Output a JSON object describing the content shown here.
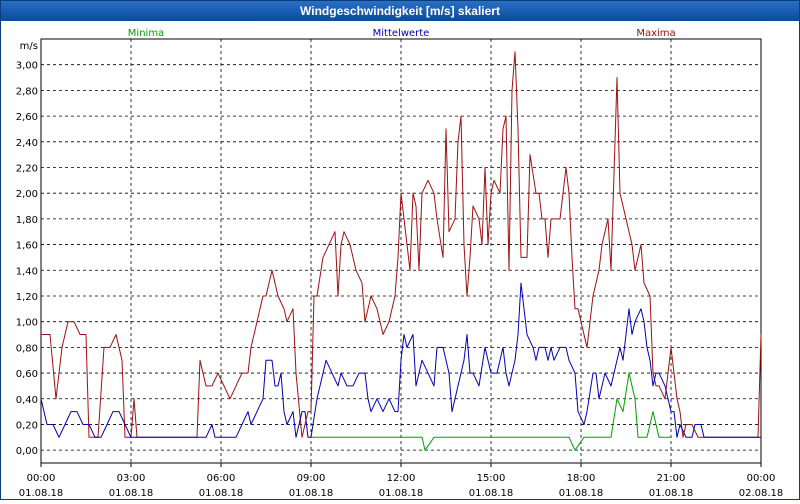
{
  "window": {
    "title": "Windgeschwindigkeit [m/s] skaliert"
  },
  "chart_data": {
    "type": "line",
    "title": "Windgeschwindigkeit [m/s] skaliert",
    "ylabel": "m/s",
    "ylim": [
      -0.1,
      3.2
    ],
    "xlim": [
      0,
      24
    ],
    "grid": true,
    "yticks": [
      "0,00",
      "0,20",
      "0,40",
      "0,60",
      "0,80",
      "1,00",
      "1,20",
      "1,40",
      "1,60",
      "1,80",
      "2,00",
      "2,20",
      "2,40",
      "2,60",
      "2,80",
      "3,00"
    ],
    "ytick_values": [
      0,
      0.2,
      0.4,
      0.6,
      0.8,
      1.0,
      1.2,
      1.4,
      1.6,
      1.8,
      2.0,
      2.2,
      2.4,
      2.6,
      2.8,
      3.0
    ],
    "xticks": [
      {
        "x": 0,
        "time": "00:00",
        "date": "01.08.18"
      },
      {
        "x": 3,
        "time": "03:00",
        "date": "01.08.18"
      },
      {
        "x": 6,
        "time": "06:00",
        "date": "01.08.18"
      },
      {
        "x": 9,
        "time": "09:00",
        "date": "01.08.18"
      },
      {
        "x": 12,
        "time": "12:00",
        "date": "01.08.18"
      },
      {
        "x": 15,
        "time": "15:00",
        "date": "01.08.18"
      },
      {
        "x": 18,
        "time": "18:00",
        "date": "01.08.18"
      },
      {
        "x": 21,
        "time": "21:00",
        "date": "01.08.18"
      },
      {
        "x": 24,
        "time": "00:00",
        "date": "02.08.18"
      }
    ],
    "series": [
      {
        "name": "Maxima",
        "color": "#a01010",
        "label_x": 20.5,
        "points": [
          [
            0,
            0.9
          ],
          [
            0.3,
            0.9
          ],
          [
            0.5,
            0.4
          ],
          [
            0.7,
            0.8
          ],
          [
            0.9,
            1.0
          ],
          [
            1.1,
            1.0
          ],
          [
            1.3,
            0.9
          ],
          [
            1.5,
            0.9
          ],
          [
            1.6,
            0.1
          ],
          [
            1.9,
            0.1
          ],
          [
            2.1,
            0.8
          ],
          [
            2.3,
            0.8
          ],
          [
            2.5,
            0.9
          ],
          [
            2.7,
            0.7
          ],
          [
            2.8,
            0.1
          ],
          [
            3.0,
            0.1
          ],
          [
            3.1,
            0.4
          ],
          [
            3.2,
            0.1
          ],
          [
            5.2,
            0.1
          ],
          [
            5.3,
            0.7
          ],
          [
            5.5,
            0.5
          ],
          [
            5.7,
            0.5
          ],
          [
            5.9,
            0.6
          ],
          [
            6.1,
            0.5
          ],
          [
            6.3,
            0.4
          ],
          [
            6.5,
            0.5
          ],
          [
            6.7,
            0.6
          ],
          [
            6.9,
            0.6
          ],
          [
            7.0,
            0.8
          ],
          [
            7.2,
            1.0
          ],
          [
            7.4,
            1.2
          ],
          [
            7.5,
            1.2
          ],
          [
            7.7,
            1.4
          ],
          [
            7.9,
            1.2
          ],
          [
            8.1,
            1.1
          ],
          [
            8.2,
            1.0
          ],
          [
            8.4,
            1.1
          ],
          [
            8.5,
            0.6
          ],
          [
            8.7,
            0.1
          ],
          [
            8.9,
            0.3
          ],
          [
            9.0,
            0.3
          ],
          [
            9.1,
            1.2
          ],
          [
            9.2,
            1.2
          ],
          [
            9.4,
            1.5
          ],
          [
            9.6,
            1.6
          ],
          [
            9.8,
            1.7
          ],
          [
            9.9,
            1.2
          ],
          [
            10.0,
            1.6
          ],
          [
            10.1,
            1.7
          ],
          [
            10.3,
            1.6
          ],
          [
            10.5,
            1.4
          ],
          [
            10.7,
            1.3
          ],
          [
            10.8,
            1.0
          ],
          [
            11.0,
            1.2
          ],
          [
            11.2,
            1.1
          ],
          [
            11.4,
            0.9
          ],
          [
            11.6,
            1.0
          ],
          [
            11.8,
            1.2
          ],
          [
            11.9,
            1.5
          ],
          [
            12.0,
            2.0
          ],
          [
            12.1,
            1.8
          ],
          [
            12.3,
            1.4
          ],
          [
            12.4,
            2.0
          ],
          [
            12.5,
            1.9
          ],
          [
            12.6,
            1.4
          ],
          [
            12.7,
            2.0
          ],
          [
            12.9,
            2.1
          ],
          [
            13.1,
            2.0
          ],
          [
            13.2,
            1.8
          ],
          [
            13.4,
            1.5
          ],
          [
            13.5,
            2.5
          ],
          [
            13.6,
            1.7
          ],
          [
            13.8,
            1.8
          ],
          [
            13.9,
            2.4
          ],
          [
            14.0,
            2.6
          ],
          [
            14.1,
            1.6
          ],
          [
            14.2,
            1.2
          ],
          [
            14.3,
            1.5
          ],
          [
            14.4,
            1.9
          ],
          [
            14.6,
            1.8
          ],
          [
            14.7,
            1.6
          ],
          [
            14.8,
            2.2
          ],
          [
            14.9,
            1.6
          ],
          [
            15.0,
            2.0
          ],
          [
            15.1,
            2.1
          ],
          [
            15.3,
            2.0
          ],
          [
            15.4,
            2.5
          ],
          [
            15.5,
            2.6
          ],
          [
            15.6,
            1.4
          ],
          [
            15.7,
            2.8
          ],
          [
            15.8,
            3.1
          ],
          [
            15.9,
            2.5
          ],
          [
            16.0,
            1.5
          ],
          [
            16.2,
            1.5
          ],
          [
            16.3,
            2.3
          ],
          [
            16.5,
            2.0
          ],
          [
            16.6,
            2.0
          ],
          [
            16.7,
            1.8
          ],
          [
            16.8,
            1.8
          ],
          [
            16.9,
            1.5
          ],
          [
            17.0,
            1.8
          ],
          [
            17.2,
            1.8
          ],
          [
            17.3,
            1.8
          ],
          [
            17.5,
            2.2
          ],
          [
            17.6,
            2.0
          ],
          [
            17.7,
            1.5
          ],
          [
            17.8,
            1.1
          ],
          [
            17.9,
            1.1
          ],
          [
            18.0,
            1.0
          ],
          [
            18.2,
            0.8
          ],
          [
            18.4,
            1.2
          ],
          [
            18.6,
            1.4
          ],
          [
            18.7,
            1.6
          ],
          [
            18.9,
            1.8
          ],
          [
            19.0,
            1.4
          ],
          [
            19.2,
            2.9
          ],
          [
            19.3,
            2.0
          ],
          [
            19.4,
            1.9
          ],
          [
            19.5,
            1.8
          ],
          [
            19.7,
            1.6
          ],
          [
            19.8,
            1.4
          ],
          [
            20.0,
            1.6
          ],
          [
            20.1,
            1.3
          ],
          [
            20.3,
            1.2
          ],
          [
            20.4,
            0.6
          ],
          [
            20.5,
            0.5
          ],
          [
            20.6,
            0.5
          ],
          [
            20.8,
            0.4
          ],
          [
            20.9,
            0.6
          ],
          [
            21.0,
            0.8
          ],
          [
            21.2,
            0.4
          ],
          [
            21.3,
            0.3
          ],
          [
            21.4,
            0.1
          ],
          [
            21.5,
            0.2
          ],
          [
            21.7,
            0.2
          ],
          [
            21.9,
            0.1
          ],
          [
            23.7,
            0.1
          ],
          [
            23.9,
            0.1
          ],
          [
            24.0,
            0.9
          ]
        ]
      },
      {
        "name": "Mittelwerte",
        "color": "#0000b4",
        "label_x": 12.0,
        "points": [
          [
            0,
            0.4
          ],
          [
            0.2,
            0.2
          ],
          [
            0.4,
            0.2
          ],
          [
            0.6,
            0.1
          ],
          [
            0.8,
            0.2
          ],
          [
            1.0,
            0.3
          ],
          [
            1.2,
            0.3
          ],
          [
            1.4,
            0.2
          ],
          [
            1.6,
            0.2
          ],
          [
            1.8,
            0.1
          ],
          [
            2.0,
            0.1
          ],
          [
            2.2,
            0.2
          ],
          [
            2.4,
            0.3
          ],
          [
            2.6,
            0.3
          ],
          [
            2.8,
            0.2
          ],
          [
            3.0,
            0.1
          ],
          [
            3.2,
            0.1
          ],
          [
            5.5,
            0.1
          ],
          [
            5.7,
            0.2
          ],
          [
            5.8,
            0.1
          ],
          [
            6.5,
            0.1
          ],
          [
            6.7,
            0.2
          ],
          [
            6.9,
            0.3
          ],
          [
            7.0,
            0.2
          ],
          [
            7.2,
            0.3
          ],
          [
            7.4,
            0.4
          ],
          [
            7.5,
            0.7
          ],
          [
            7.7,
            0.7
          ],
          [
            7.8,
            0.5
          ],
          [
            7.9,
            0.5
          ],
          [
            8.0,
            0.6
          ],
          [
            8.1,
            0.3
          ],
          [
            8.2,
            0.2
          ],
          [
            8.4,
            0.3
          ],
          [
            8.5,
            0.1
          ],
          [
            8.6,
            0.2
          ],
          [
            8.7,
            0.3
          ],
          [
            8.8,
            0.3
          ],
          [
            8.9,
            0.1
          ],
          [
            9.0,
            0.1
          ],
          [
            9.2,
            0.4
          ],
          [
            9.4,
            0.6
          ],
          [
            9.5,
            0.7
          ],
          [
            9.7,
            0.6
          ],
          [
            9.9,
            0.5
          ],
          [
            10.0,
            0.6
          ],
          [
            10.2,
            0.5
          ],
          [
            10.4,
            0.5
          ],
          [
            10.6,
            0.6
          ],
          [
            10.8,
            0.6
          ],
          [
            10.9,
            0.4
          ],
          [
            11.0,
            0.3
          ],
          [
            11.2,
            0.4
          ],
          [
            11.4,
            0.3
          ],
          [
            11.6,
            0.4
          ],
          [
            11.8,
            0.3
          ],
          [
            11.9,
            0.3
          ],
          [
            12.0,
            0.7
          ],
          [
            12.1,
            0.9
          ],
          [
            12.2,
            0.8
          ],
          [
            12.4,
            0.9
          ],
          [
            12.5,
            0.5
          ],
          [
            12.7,
            0.7
          ],
          [
            12.9,
            0.6
          ],
          [
            13.1,
            0.5
          ],
          [
            13.2,
            0.8
          ],
          [
            13.4,
            0.8
          ],
          [
            13.6,
            0.6
          ],
          [
            13.7,
            0.3
          ],
          [
            13.9,
            0.5
          ],
          [
            14.1,
            0.7
          ],
          [
            14.2,
            0.9
          ],
          [
            14.3,
            0.6
          ],
          [
            14.4,
            0.6
          ],
          [
            14.6,
            0.5
          ],
          [
            14.8,
            0.8
          ],
          [
            15.0,
            0.6
          ],
          [
            15.2,
            0.6
          ],
          [
            15.4,
            0.8
          ],
          [
            15.5,
            0.6
          ],
          [
            15.6,
            0.5
          ],
          [
            15.8,
            0.7
          ],
          [
            15.9,
            0.9
          ],
          [
            16.0,
            1.3
          ],
          [
            16.1,
            1.1
          ],
          [
            16.2,
            0.9
          ],
          [
            16.4,
            0.8
          ],
          [
            16.5,
            0.7
          ],
          [
            16.6,
            0.8
          ],
          [
            16.8,
            0.8
          ],
          [
            16.9,
            0.7
          ],
          [
            17.0,
            0.8
          ],
          [
            17.1,
            0.7
          ],
          [
            17.3,
            0.8
          ],
          [
            17.5,
            0.8
          ],
          [
            17.6,
            0.7
          ],
          [
            17.8,
            0.6
          ],
          [
            17.9,
            0.3
          ],
          [
            18.1,
            0.2
          ],
          [
            18.2,
            0.3
          ],
          [
            18.4,
            0.6
          ],
          [
            18.5,
            0.6
          ],
          [
            18.6,
            0.4
          ],
          [
            18.8,
            0.6
          ],
          [
            19.0,
            0.5
          ],
          [
            19.1,
            0.6
          ],
          [
            19.3,
            0.8
          ],
          [
            19.4,
            0.7
          ],
          [
            19.5,
            0.9
          ],
          [
            19.6,
            1.1
          ],
          [
            19.7,
            0.9
          ],
          [
            19.8,
            1.0
          ],
          [
            20.0,
            1.1
          ],
          [
            20.1,
            1.0
          ],
          [
            20.2,
            0.8
          ],
          [
            20.3,
            0.7
          ],
          [
            20.4,
            0.5
          ],
          [
            20.5,
            0.6
          ],
          [
            20.6,
            0.6
          ],
          [
            20.8,
            0.5
          ],
          [
            20.9,
            0.4
          ],
          [
            21.0,
            0.3
          ],
          [
            21.1,
            0.3
          ],
          [
            21.2,
            0.1
          ],
          [
            21.3,
            0.2
          ],
          [
            21.5,
            0.1
          ],
          [
            21.7,
            0.1
          ],
          [
            21.8,
            0.2
          ],
          [
            22.0,
            0.2
          ],
          [
            22.1,
            0.1
          ],
          [
            23.7,
            0.1
          ],
          [
            24.0,
            0.1
          ]
        ]
      },
      {
        "name": "Minima",
        "color": "#00a000",
        "label_x": 3.5,
        "points": [
          [
            9.0,
            0.1
          ],
          [
            12.7,
            0.1
          ],
          [
            12.8,
            0.0
          ],
          [
            13.1,
            0.1
          ],
          [
            17.6,
            0.1
          ],
          [
            17.8,
            0.0
          ],
          [
            18.1,
            0.1
          ],
          [
            19.0,
            0.1
          ],
          [
            19.2,
            0.4
          ],
          [
            19.4,
            0.3
          ],
          [
            19.6,
            0.6
          ],
          [
            19.8,
            0.4
          ],
          [
            19.9,
            0.1
          ],
          [
            20.2,
            0.1
          ],
          [
            20.4,
            0.3
          ],
          [
            20.6,
            0.1
          ],
          [
            21.0,
            0.1
          ]
        ]
      }
    ]
  }
}
